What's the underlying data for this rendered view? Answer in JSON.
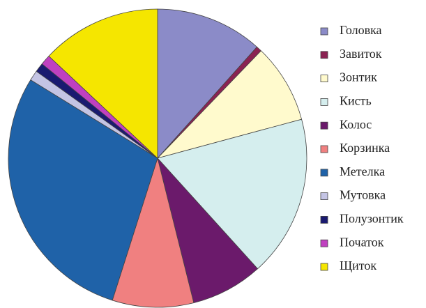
{
  "chart_data": {
    "type": "pie",
    "categories": [
      "Головка",
      "Завиток",
      "Зонтик",
      "Кисть",
      "Колос",
      "Корзинка",
      "Метелка",
      "Мутовка",
      "Полузонтик",
      "Початок",
      "Щиток"
    ],
    "values": [
      11.6,
      0.6,
      8.6,
      17.5,
      7.8,
      8.8,
      28.9,
      1.1,
      1.0,
      1.1,
      13.0
    ],
    "colors": [
      "#8b8bc8",
      "#8b2252",
      "#fffacd",
      "#d5eeee",
      "#6b1a6b",
      "#f08080",
      "#1f62a8",
      "#c4c4e4",
      "#1a1a70",
      "#c040c0",
      "#f5e600"
    ],
    "legend": "right"
  }
}
